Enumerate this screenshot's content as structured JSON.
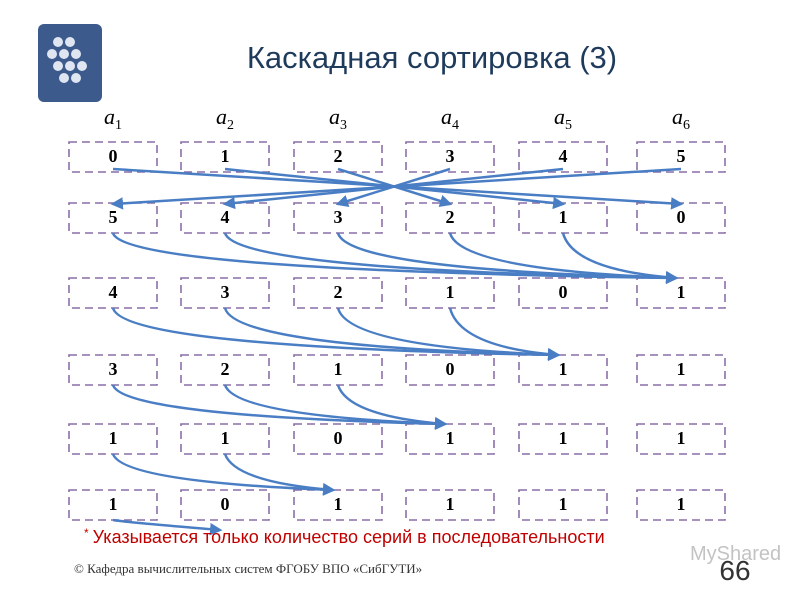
{
  "header": {
    "title": "Каскадная сортировка (3)"
  },
  "columns": [
    {
      "base": "a",
      "sub": "1"
    },
    {
      "base": "a",
      "sub": "2"
    },
    {
      "base": "a",
      "sub": "3"
    },
    {
      "base": "a",
      "sub": "4"
    },
    {
      "base": "a",
      "sub": "5"
    },
    {
      "base": "a",
      "sub": "6"
    }
  ],
  "table": {
    "rows": [
      [
        0,
        1,
        2,
        3,
        4,
        5
      ],
      [
        5,
        4,
        3,
        2,
        1,
        0
      ],
      [
        4,
        3,
        2,
        1,
        0,
        1
      ],
      [
        3,
        2,
        1,
        0,
        1,
        1
      ],
      [
        1,
        1,
        0,
        1,
        1,
        1
      ],
      [
        1,
        0,
        1,
        1,
        1,
        1
      ]
    ]
  },
  "footnote": {
    "mark": "*",
    "text": "Указывается только количество серий в последовательности"
  },
  "footer": {
    "text": "© Кафедра вычислительных систем ФГОБУ ВПО «СибГУТИ»",
    "page": "66"
  },
  "watermark": "MyShared"
}
